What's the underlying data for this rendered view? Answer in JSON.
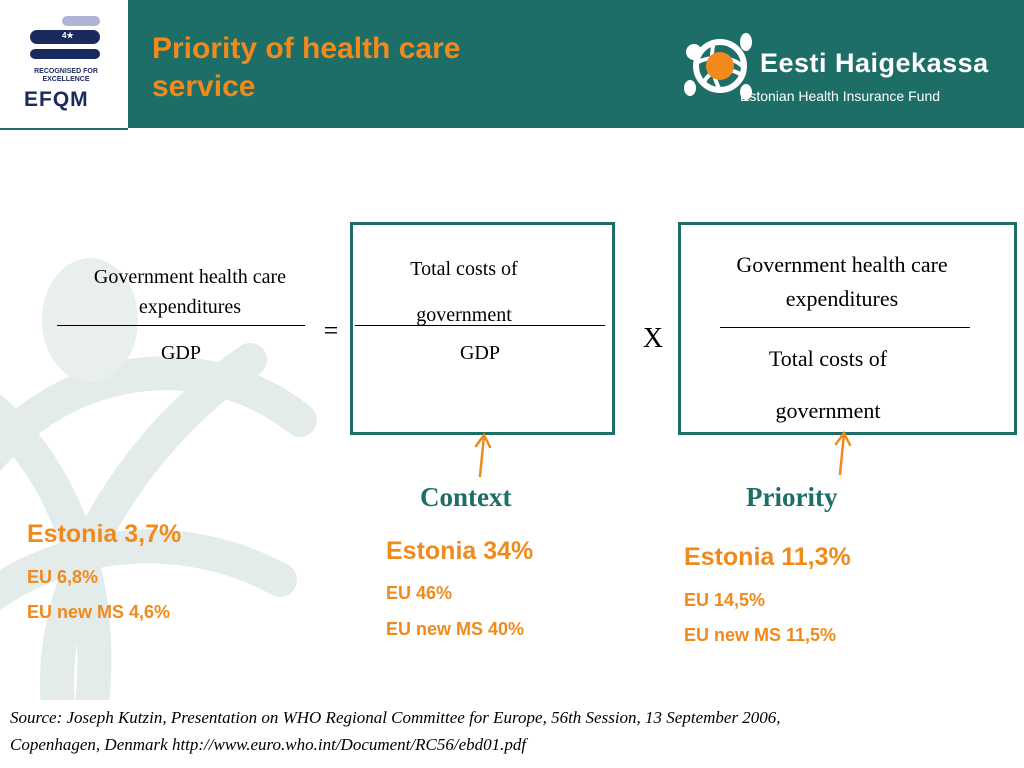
{
  "header": {
    "title_line1": "Priority of health care",
    "title_line2": "service",
    "brand_name": "Eesti Haigekassa",
    "brand_sub": "Estonian Health Insurance Fund",
    "efqm": {
      "stars": "4★",
      "recognised_line1": "RECOGNISED FOR",
      "recognised_line2": "EXCELLENCE",
      "word": "EFQM"
    }
  },
  "formula": {
    "left_num": "Government health care expenditures",
    "left_den": "GDP",
    "equals": "=",
    "mid_num_1": "Total costs of",
    "mid_num_2": "government",
    "mid_den": "GDP",
    "times": "X",
    "right_num": "Government health care expenditures",
    "right_den_1": "Total costs of",
    "right_den_2": "government"
  },
  "labels": {
    "context": "Context",
    "priority": "Priority"
  },
  "stats": {
    "left": {
      "estonia": "Estonia 3,7%",
      "eu": "EU 6,8%",
      "eu_new": "EU new MS 4,6%"
    },
    "mid": {
      "estonia": "Estonia 34%",
      "eu": "EU 46%",
      "eu_new": "EU new MS 40%"
    },
    "right": {
      "estonia": "Estonia 11,3%",
      "eu": "EU 14,5%",
      "eu_new": "EU new MS 11,5%"
    }
  },
  "source": {
    "line1": "Source: Joseph Kutzin, Presentation on WHO Regional Committee for Europe, 56th Session, 13 September 2006,",
    "line2": "Copenhagen, Denmark http://www.euro.who.int/Document/RC56/ebd01.pdf"
  },
  "colors": {
    "teal": "#1e6e68",
    "orange": "#f08a1c",
    "navy": "#1b2a5e"
  },
  "icons": [
    "efqm-logo",
    "turtle-logo",
    "turtle-watermark",
    "arrow-up-icon"
  ]
}
